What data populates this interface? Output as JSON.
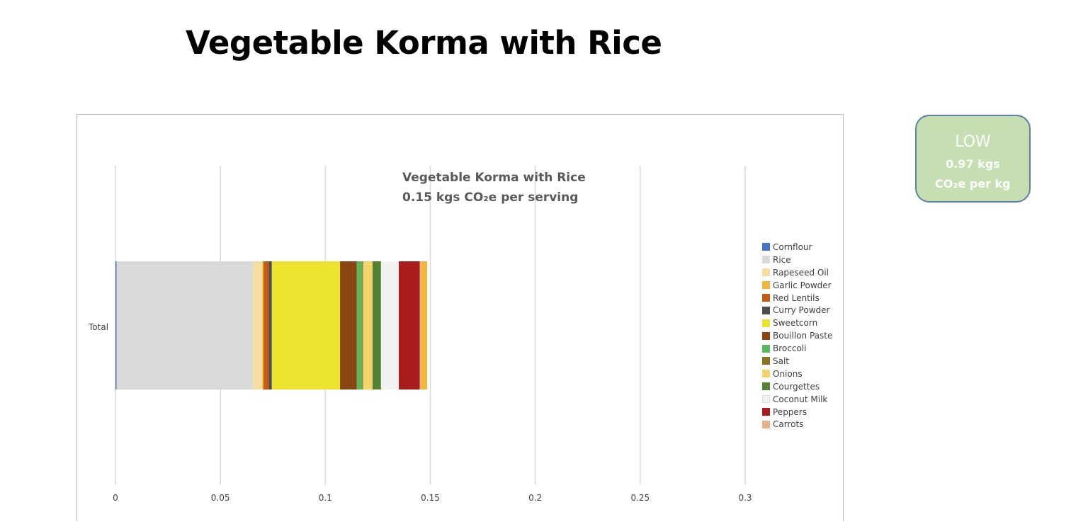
{
  "page": {
    "title": "Vegetable Korma with Rice"
  },
  "badge": {
    "level": "LOW",
    "value": "0.97 kgs",
    "unit": "CO₂e per kg",
    "background": "#c6dfb2",
    "border": "#5d7fa8"
  },
  "chart_data": {
    "type": "bar",
    "orientation": "horizontal",
    "stacked": true,
    "title": "Vegetable Korma with Rice",
    "subtitle": "0.15 kgs CO₂e per serving",
    "categories": [
      "Total"
    ],
    "xlim": [
      0,
      0.3
    ],
    "x_ticks": [
      "0",
      "0.05",
      "0.1",
      "0.15",
      "0.2",
      "0.25",
      "0.3"
    ],
    "grid": "vertical",
    "legend_position": "right",
    "series": [
      {
        "name": "Cornflour",
        "color": "#4472c4",
        "values": [
          0.0005
        ]
      },
      {
        "name": "Rice",
        "color": "#d9d9d9",
        "values": [
          0.065
        ]
      },
      {
        "name": "Rapeseed Oil",
        "color": "#f6dea3",
        "values": [
          0.0045
        ]
      },
      {
        "name": "Garlic Powder",
        "color": "#f0b73b",
        "values": [
          0.0005
        ]
      },
      {
        "name": "Red Lentils",
        "color": "#c55a11",
        "values": [
          0.0025
        ]
      },
      {
        "name": "Curry Powder",
        "color": "#4d4d4d",
        "values": [
          0.0015
        ]
      },
      {
        "name": "Sweetcorn",
        "color": "#ebe32e",
        "values": [
          0.0325
        ]
      },
      {
        "name": "Bouillon Paste",
        "color": "#8b4513",
        "values": [
          0.008
        ]
      },
      {
        "name": "Broccoli",
        "color": "#5cb85c",
        "values": [
          0.0025
        ]
      },
      {
        "name": "Salt",
        "color": "#8b7321",
        "values": [
          0.0005
        ]
      },
      {
        "name": "Onions",
        "color": "#f3d46a",
        "values": [
          0.0045
        ]
      },
      {
        "name": "Courgettes",
        "color": "#548235",
        "values": [
          0.004
        ]
      },
      {
        "name": "Coconut Milk",
        "color": "#f2f2f2",
        "values": [
          0.0085
        ]
      },
      {
        "name": "Peppers",
        "color": "#a81c1c",
        "values": [
          0.01
        ]
      },
      {
        "name": "Carrots",
        "color": "#e6b08a",
        "values": [
          0.0005
        ]
      },
      {
        "name": "",
        "color": "#f0b73b",
        "values": [
          0.003
        ]
      }
    ]
  }
}
